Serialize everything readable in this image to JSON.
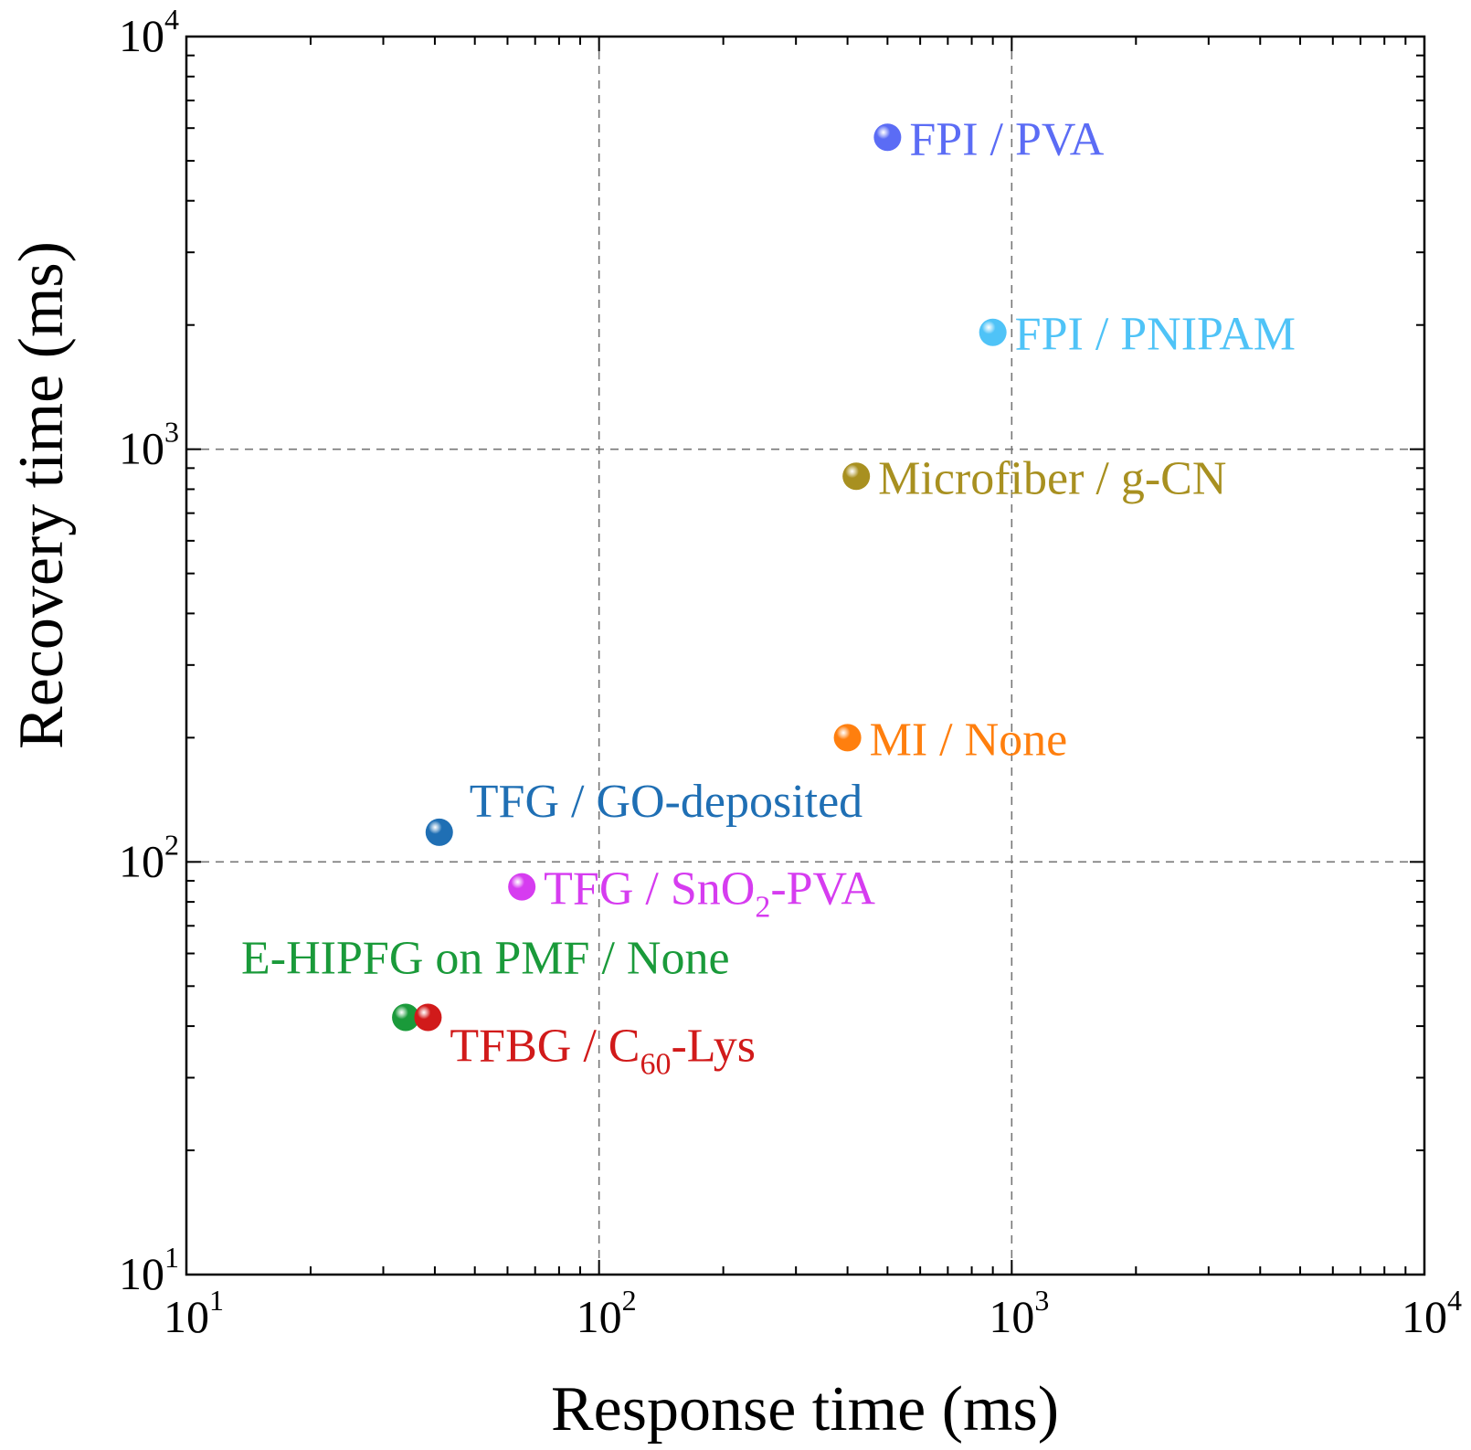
{
  "chart_data": {
    "type": "scatter",
    "title": "",
    "xlabel": "Response time (ms)",
    "ylabel": "Recovery time (ms)",
    "xscale": "log",
    "yscale": "log",
    "xlim": [
      10,
      10000
    ],
    "ylim": [
      10,
      10000
    ],
    "grid": "dashed, at decades",
    "legend": "none (points labelled directly)",
    "x_tick_labels": [
      {
        "base": "10",
        "exp": "1"
      },
      {
        "base": "10",
        "exp": "2"
      },
      {
        "base": "10",
        "exp": "3"
      },
      {
        "base": "10",
        "exp": "4"
      }
    ],
    "y_tick_labels": [
      {
        "base": "10",
        "exp": "1"
      },
      {
        "base": "10",
        "exp": "2"
      },
      {
        "base": "10",
        "exp": "3"
      },
      {
        "base": "10",
        "exp": "4"
      }
    ],
    "points": [
      {
        "label": "FPI / PVA",
        "x": 500,
        "y": 5700,
        "color": "#5b6cf5",
        "label_side": "right"
      },
      {
        "label": "FPI / PNIPAM",
        "x": 900,
        "y": 1920,
        "color": "#4fc3f7",
        "label_side": "right"
      },
      {
        "label": "Microfiber / g-CN",
        "x": 420,
        "y": 860,
        "color": "#a89020",
        "label_side": "right"
      },
      {
        "label": "MI / None",
        "x": 400,
        "y": 200,
        "color": "#ff7f0e",
        "label_side": "right"
      },
      {
        "label": "TFG / GO-deposited",
        "x": 41,
        "y": 118,
        "color": "#1f6fb4",
        "label_side": "above-right"
      },
      {
        "label": "TFG / SnO2-PVA",
        "label_parts": [
          "TFG / SnO",
          "2",
          "-PVA"
        ],
        "x": 65,
        "y": 87,
        "color": "#d63cf0",
        "label_side": "right"
      },
      {
        "label": "E-HIPFG on PMF / None",
        "x": 34,
        "y": 42,
        "color": "#1a9a3a",
        "label_side": "above"
      },
      {
        "label": "TFBG / C60-Lys",
        "label_parts": [
          "TFBG / C",
          "60",
          "-Lys"
        ],
        "x": 38.5,
        "y": 42,
        "color": "#d11a1a",
        "label_side": "below-right"
      }
    ]
  }
}
